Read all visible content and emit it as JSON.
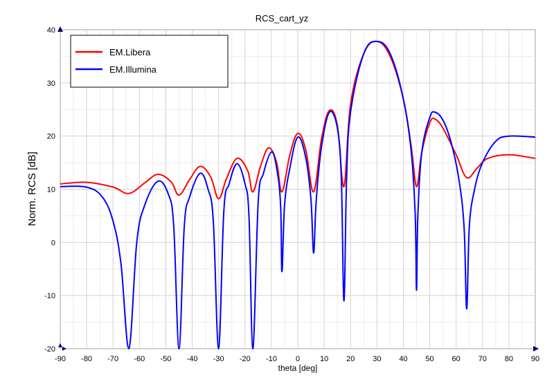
{
  "chart_data": {
    "type": "line",
    "title": "RCS_cart_yz",
    "xlabel": "theta [deg]",
    "ylabel": "Norm. RCS [dB]",
    "xlim": [
      -90,
      90
    ],
    "ylim": [
      -20,
      40
    ],
    "x_ticks": [
      "-90",
      "-80",
      "-70",
      "-60",
      "-50",
      "-40",
      "-30",
      "-20",
      "-10",
      "0",
      "10",
      "20",
      "30",
      "40",
      "50",
      "60",
      "70",
      "80",
      "90"
    ],
    "y_ticks": [
      "-20",
      "-10",
      "0",
      "10",
      "20",
      "30",
      "40"
    ],
    "grid": true,
    "legend_position": "top-left",
    "series": [
      {
        "name": "EM.Libera",
        "color": "#ff0000",
        "points": [
          [
            -90,
            11.0
          ],
          [
            -80,
            11.3
          ],
          [
            -70,
            10.4
          ],
          [
            -64,
            9.2
          ],
          [
            -58,
            11.2
          ],
          [
            -53,
            12.8
          ],
          [
            -48,
            11.4
          ],
          [
            -45,
            8.9
          ],
          [
            -41,
            11.8
          ],
          [
            -37,
            14.3
          ],
          [
            -33,
            12.3
          ],
          [
            -30,
            8.2
          ],
          [
            -27,
            12.0
          ],
          [
            -23,
            15.8
          ],
          [
            -19,
            13.5
          ],
          [
            -17,
            9.5
          ],
          [
            -14,
            14.5
          ],
          [
            -11,
            17.8
          ],
          [
            -8,
            15.0
          ],
          [
            -6,
            9.5
          ],
          [
            -3,
            16.5
          ],
          [
            0,
            20.5
          ],
          [
            3,
            17.5
          ],
          [
            6,
            9.5
          ],
          [
            9,
            19.5
          ],
          [
            12,
            24.8
          ],
          [
            15,
            22.0
          ],
          [
            17.5,
            10.5
          ],
          [
            20,
            26.0
          ],
          [
            25,
            35.5
          ],
          [
            30,
            37.8
          ],
          [
            35,
            35.0
          ],
          [
            40,
            27.0
          ],
          [
            43,
            18.0
          ],
          [
            45,
            10.5
          ],
          [
            47,
            17.0
          ],
          [
            50,
            22.5
          ],
          [
            52,
            23.2
          ],
          [
            55,
            21.5
          ],
          [
            60,
            16.5
          ],
          [
            64,
            12.2
          ],
          [
            68,
            14.0
          ],
          [
            72,
            15.8
          ],
          [
            80,
            16.5
          ],
          [
            90,
            15.8
          ]
        ]
      },
      {
        "name": "EM.Illumina",
        "color": "#0000ff",
        "points": [
          [
            -90,
            10.5
          ],
          [
            -80,
            10.4
          ],
          [
            -74,
            8.5
          ],
          [
            -70,
            4.0
          ],
          [
            -67,
            -4.0
          ],
          [
            -64,
            -20.0
          ],
          [
            -61,
            0.0
          ],
          [
            -58,
            7.0
          ],
          [
            -53,
            11.5
          ],
          [
            -49,
            9.0
          ],
          [
            -47,
            3.0
          ],
          [
            -45,
            -20.0
          ],
          [
            -43,
            3.0
          ],
          [
            -41,
            8.5
          ],
          [
            -37,
            13.0
          ],
          [
            -34,
            10.0
          ],
          [
            -32,
            4.0
          ],
          [
            -30,
            -20.0
          ],
          [
            -28,
            6.0
          ],
          [
            -26,
            11.0
          ],
          [
            -23,
            14.8
          ],
          [
            -20,
            11.0
          ],
          [
            -18.5,
            5.0
          ],
          [
            -17,
            -20.0
          ],
          [
            -15,
            7.5
          ],
          [
            -13,
            13.0
          ],
          [
            -10,
            17.0
          ],
          [
            -8,
            14.0
          ],
          [
            -6.5,
            7.0
          ],
          [
            -6,
            -5.5
          ],
          [
            -5,
            7.0
          ],
          [
            -3,
            14.0
          ],
          [
            0,
            19.8
          ],
          [
            3,
            16.0
          ],
          [
            5,
            8.0
          ],
          [
            6,
            -2.0
          ],
          [
            7,
            8.0
          ],
          [
            9,
            18.0
          ],
          [
            12,
            24.5
          ],
          [
            15,
            21.5
          ],
          [
            16.5,
            12.0
          ],
          [
            17.5,
            -11.0
          ],
          [
            18.5,
            12.0
          ],
          [
            20,
            24.5
          ],
          [
            25,
            35.5
          ],
          [
            30,
            37.8
          ],
          [
            35,
            35.5
          ],
          [
            40,
            27.0
          ],
          [
            43,
            17.0
          ],
          [
            44.5,
            5.0
          ],
          [
            45,
            -9.0
          ],
          [
            45.5,
            5.0
          ],
          [
            47,
            17.0
          ],
          [
            50,
            23.5
          ],
          [
            52,
            24.5
          ],
          [
            55,
            23.0
          ],
          [
            58,
            19.0
          ],
          [
            61,
            12.0
          ],
          [
            63,
            3.0
          ],
          [
            64,
            -12.5
          ],
          [
            65,
            3.0
          ],
          [
            67,
            10.0
          ],
          [
            70,
            15.0
          ],
          [
            75,
            19.0
          ],
          [
            80,
            20.0
          ],
          [
            90,
            19.8
          ]
        ]
      }
    ]
  }
}
